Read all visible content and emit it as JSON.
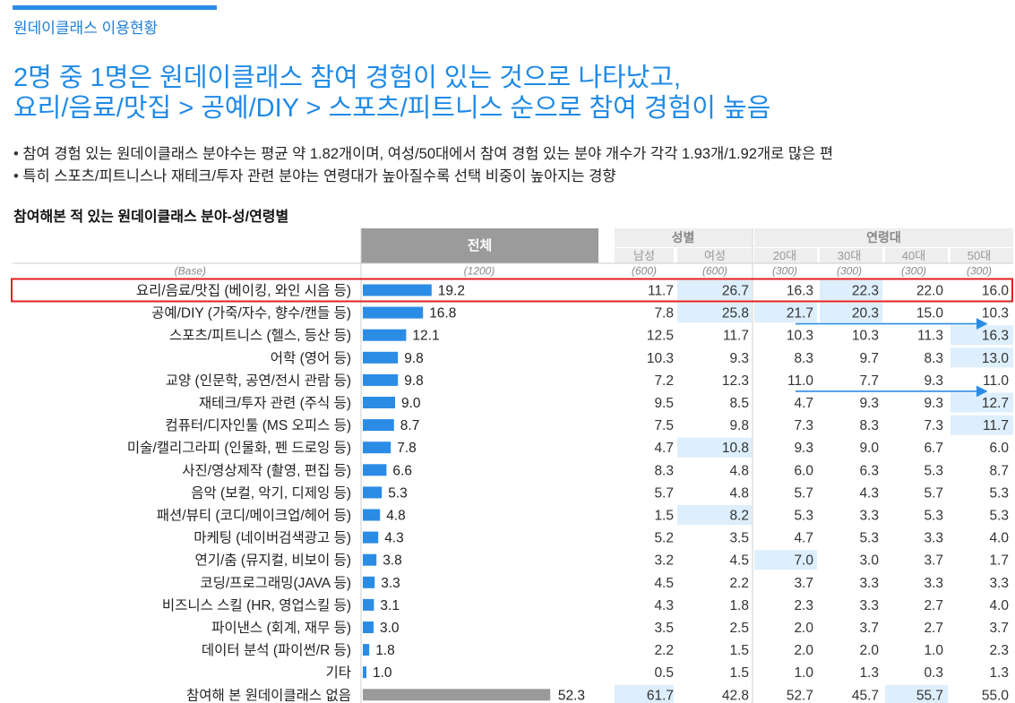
{
  "section_label": "원데이클래스 이용현황",
  "headline": [
    "2명 중 1명은 원데이클래스 참여 경험이 있는 것으로 나타났고,",
    "요리/음료/맛집 > 공예/DIY > 스포츠/피트니스 순으로 참여 경험이 높음"
  ],
  "bullets": [
    "참여 경험 있는 원데이클래스 분야수는 평균 약 1.82개이며, 여성/50대에서 참여 경험 있는 분야 개수가 각각 1.93개/1.92개로 많은 편",
    "특히 스포츠/피트니스나 재테크/투자 관련 분야는 연령대가 높아질수록 선택 비중이 높아지는 경향"
  ],
  "chart_data": {
    "type": "table",
    "title": "참여해본 적 있는 원데이클래스 분야-성/연령별",
    "total_header": "전체",
    "group_headers": {
      "gender": "성별",
      "age": "연령대"
    },
    "columns": [
      "남성",
      "여성",
      "20대",
      "30대",
      "40대",
      "50대"
    ],
    "base_label": "(Base)",
    "base_total": "(1200)",
    "base": [
      "(600)",
      "(600)",
      "(300)",
      "(300)",
      "(300)",
      "(300)"
    ],
    "rows": [
      {
        "label": "요리/음료/맛집 (베이킹, 와인 시음 등)",
        "total": 19.2,
        "values": [
          11.7,
          26.7,
          16.3,
          22.3,
          22.0,
          16.0
        ],
        "highlight": [
          false,
          true,
          false,
          true,
          false,
          false
        ]
      },
      {
        "label": "공예/DIY (가죽/자수, 향수/캔들 등)",
        "total": 16.8,
        "values": [
          7.8,
          25.8,
          21.7,
          20.3,
          15.0,
          10.3
        ],
        "highlight": [
          false,
          true,
          true,
          true,
          false,
          false
        ]
      },
      {
        "label": "스포츠/피트니스 (헬스, 등산 등)",
        "total": 12.1,
        "values": [
          12.5,
          11.7,
          10.3,
          10.3,
          11.3,
          16.3
        ],
        "highlight": [
          false,
          false,
          false,
          false,
          false,
          true
        ]
      },
      {
        "label": "어학 (영어 등)",
        "total": 9.8,
        "values": [
          10.3,
          9.3,
          8.3,
          9.7,
          8.3,
          13.0
        ],
        "highlight": [
          false,
          false,
          false,
          false,
          false,
          true
        ]
      },
      {
        "label": "교양 (인문학, 공연/전시 관람 등)",
        "total": 9.8,
        "values": [
          7.2,
          12.3,
          11.0,
          7.7,
          9.3,
          11.0
        ],
        "highlight": [
          false,
          false,
          false,
          false,
          false,
          false
        ]
      },
      {
        "label": "재테크/투자 관련 (주식 등)",
        "total": 9.0,
        "values": [
          9.5,
          8.5,
          4.7,
          9.3,
          9.3,
          12.7
        ],
        "highlight": [
          false,
          false,
          false,
          false,
          false,
          true
        ]
      },
      {
        "label": "컴퓨터/디자인툴 (MS 오피스 등)",
        "total": 8.7,
        "values": [
          7.5,
          9.8,
          7.3,
          8.3,
          7.3,
          11.7
        ],
        "highlight": [
          false,
          false,
          false,
          false,
          false,
          true
        ]
      },
      {
        "label": "미술/캘리그라피 (인물화, 펜 드로잉 등)",
        "total": 7.8,
        "values": [
          4.7,
          10.8,
          9.3,
          9.0,
          6.7,
          6.0
        ],
        "highlight": [
          false,
          true,
          false,
          false,
          false,
          false
        ]
      },
      {
        "label": "사진/영상제작 (촬영, 편집 등)",
        "total": 6.6,
        "values": [
          8.3,
          4.8,
          6.0,
          6.3,
          5.3,
          8.7
        ],
        "highlight": [
          false,
          false,
          false,
          false,
          false,
          false
        ]
      },
      {
        "label": "음악 (보컬, 악기, 디제잉 등)",
        "total": 5.3,
        "values": [
          5.7,
          4.8,
          5.7,
          4.3,
          5.7,
          5.3
        ],
        "highlight": [
          false,
          false,
          false,
          false,
          false,
          false
        ]
      },
      {
        "label": "패션/뷰티 (코디/메이크업/헤어 등)",
        "total": 4.8,
        "values": [
          1.5,
          8.2,
          5.3,
          3.3,
          5.3,
          5.3
        ],
        "highlight": [
          false,
          true,
          false,
          false,
          false,
          false
        ]
      },
      {
        "label": "마케팅 (네이버검색광고 등)",
        "total": 4.3,
        "values": [
          5.2,
          3.5,
          4.7,
          5.3,
          3.3,
          4.0
        ],
        "highlight": [
          false,
          false,
          false,
          false,
          false,
          false
        ]
      },
      {
        "label": "연기/춤 (뮤지컬, 비보이 등)",
        "total": 3.8,
        "values": [
          3.2,
          4.5,
          7.0,
          3.0,
          3.7,
          1.7
        ],
        "highlight": [
          false,
          false,
          true,
          false,
          false,
          false
        ]
      },
      {
        "label": "코딩/프로그래밍(JAVA 등)",
        "total": 3.3,
        "values": [
          4.5,
          2.2,
          3.7,
          3.3,
          3.3,
          3.3
        ],
        "highlight": [
          false,
          false,
          false,
          false,
          false,
          false
        ]
      },
      {
        "label": "비즈니스 스킬 (HR, 영업스킬 등)",
        "total": 3.1,
        "values": [
          4.3,
          1.8,
          2.3,
          3.3,
          2.7,
          4.0
        ],
        "highlight": [
          false,
          false,
          false,
          false,
          false,
          false
        ]
      },
      {
        "label": "파이낸스 (회계, 재무 등)",
        "total": 3.0,
        "values": [
          3.5,
          2.5,
          2.0,
          3.7,
          2.7,
          3.7
        ],
        "highlight": [
          false,
          false,
          false,
          false,
          false,
          false
        ]
      },
      {
        "label": "데이터 분석 (파이썬/R 등)",
        "total": 1.8,
        "values": [
          2.2,
          1.5,
          2.0,
          2.0,
          1.0,
          2.3
        ],
        "highlight": [
          false,
          false,
          false,
          false,
          false,
          false
        ]
      },
      {
        "label": "기타",
        "total": 1.0,
        "values": [
          0.5,
          1.5,
          1.0,
          1.3,
          0.3,
          1.3
        ],
        "highlight": [
          false,
          false,
          false,
          false,
          false,
          false
        ]
      },
      {
        "label": "참여해 본 원데이클래스 없음",
        "total": 52.3,
        "values": [
          61.7,
          42.8,
          52.7,
          45.7,
          55.7,
          55.0
        ],
        "highlight": [
          true,
          false,
          false,
          false,
          true,
          false
        ],
        "none_row": true
      }
    ],
    "boxed_row": 0,
    "trend_arrows": [
      {
        "row": 1,
        "note": "20대 → 50대"
      },
      {
        "row": 4,
        "note": "20대 → 50대"
      }
    ],
    "colors": {
      "accent": "#2b8ce6",
      "bar": "#2b8ce6",
      "bar_none": "#9a9a9a",
      "header": "#9b9b9b",
      "header_sub": "#eeeeee",
      "highlight": "#ddeefc",
      "box": "#e02020",
      "arrow": "#2b8ce6"
    }
  }
}
